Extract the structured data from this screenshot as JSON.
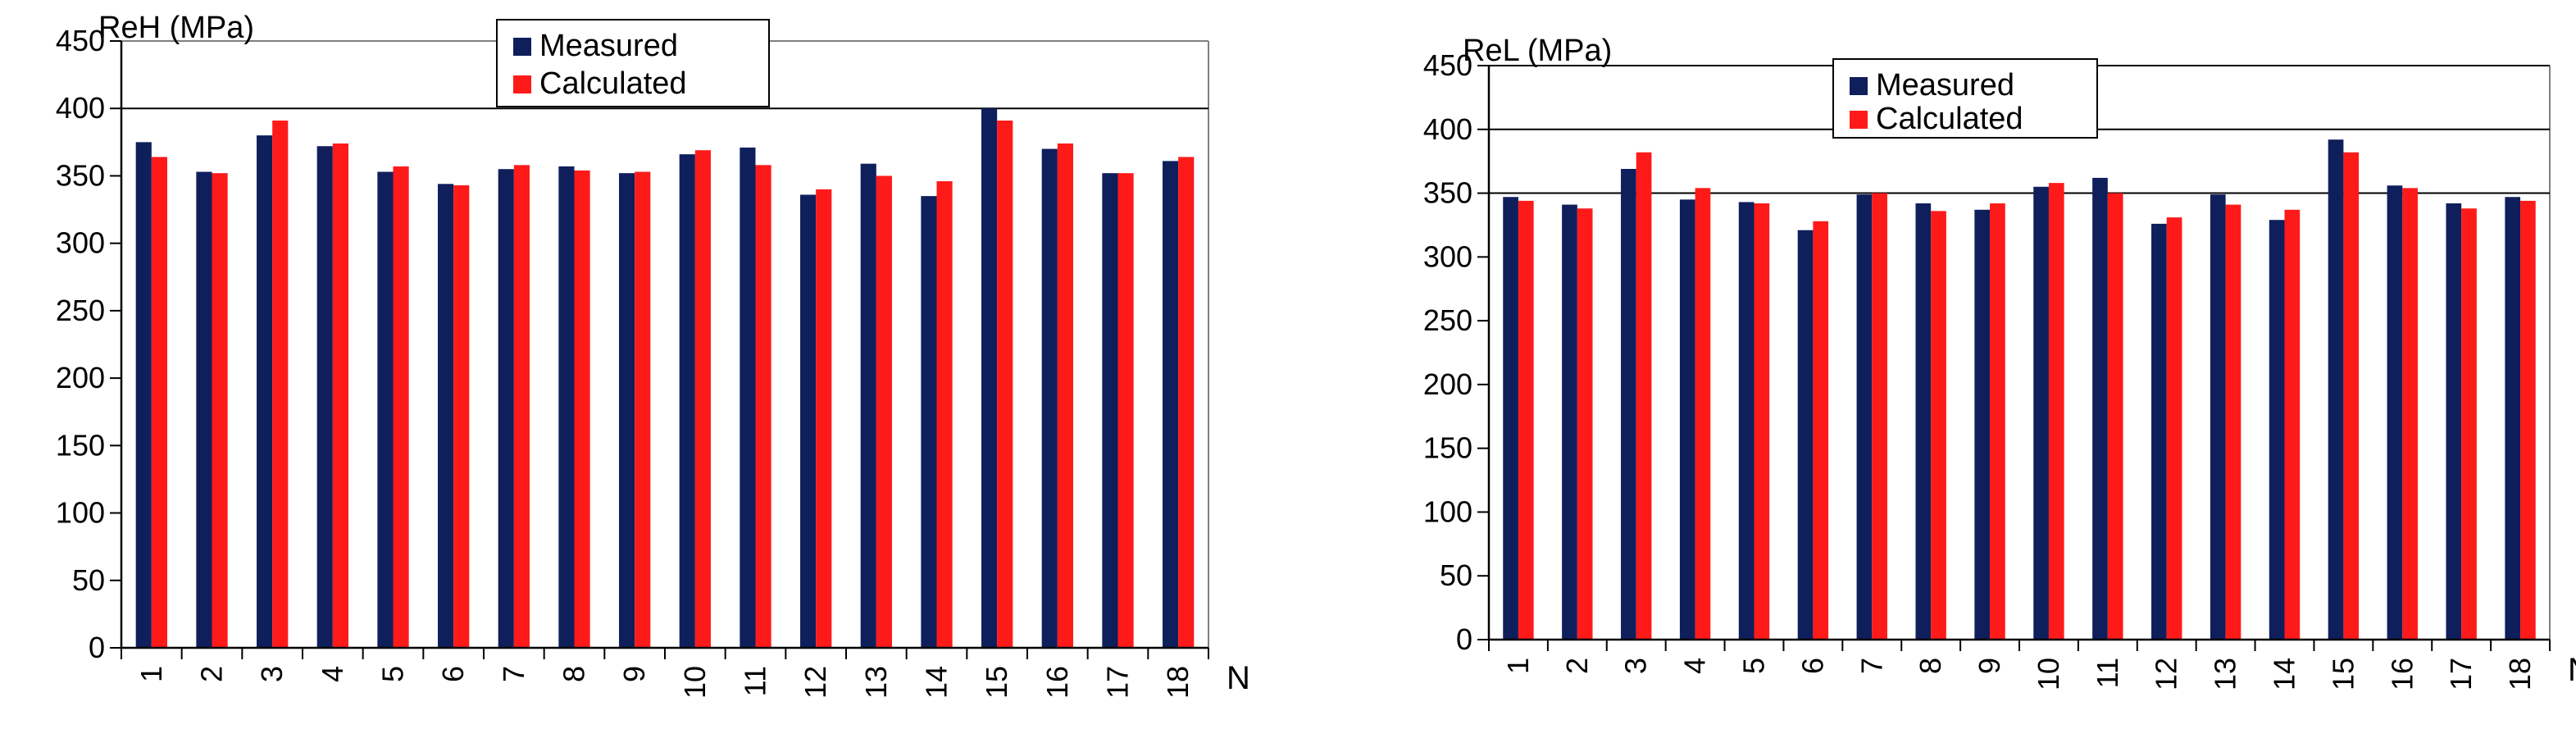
{
  "chart_data": [
    {
      "type": "bar",
      "ylabel": "ReH (MPa)",
      "xlabel": "N",
      "ylim": [
        0,
        450
      ],
      "yticks": [
        0,
        50,
        100,
        150,
        200,
        250,
        300,
        350,
        400,
        450
      ],
      "grid": "horizontal line at 400",
      "legend_position": "top-center",
      "categories": [
        "1",
        "2",
        "3",
        "4",
        "5",
        "6",
        "7",
        "8",
        "9",
        "10",
        "11",
        "12",
        "13",
        "14",
        "15",
        "16",
        "17",
        "18"
      ],
      "series": [
        {
          "name": "Measured",
          "color": "#0f1f5c",
          "values": [
            375,
            353,
            380,
            372,
            353,
            344,
            355,
            357,
            352,
            366,
            371,
            336,
            359,
            335,
            400,
            370,
            352,
            361
          ]
        },
        {
          "name": "Calculated",
          "color": "#ff1a1a",
          "values": [
            364,
            352,
            391,
            374,
            357,
            343,
            358,
            354,
            353,
            369,
            358,
            340,
            350,
            346,
            391,
            374,
            352,
            364
          ]
        }
      ]
    },
    {
      "type": "bar",
      "ylabel": "ReL (MPa)",
      "xlabel": "N",
      "ylim": [
        0,
        450
      ],
      "yticks": [
        0,
        50,
        100,
        150,
        200,
        250,
        300,
        350,
        400,
        450
      ],
      "grid": "horizontal lines at 350, 400, 450",
      "legend_position": "top-center",
      "categories": [
        "1",
        "2",
        "3",
        "4",
        "5",
        "6",
        "7",
        "8",
        "9",
        "10",
        "11",
        "12",
        "13",
        "14",
        "15",
        "16",
        "17",
        "18"
      ],
      "series": [
        {
          "name": "Measured",
          "color": "#0f1f5c",
          "values": [
            347,
            341,
            369,
            345,
            343,
            321,
            349,
            342,
            337,
            355,
            362,
            326,
            349,
            329,
            392,
            356,
            342,
            347
          ]
        },
        {
          "name": "Calculated",
          "color": "#ff1a1a",
          "values": [
            344,
            338,
            382,
            354,
            342,
            328,
            350,
            336,
            342,
            358,
            350,
            331,
            341,
            337,
            382,
            354,
            338,
            344
          ]
        }
      ]
    }
  ]
}
